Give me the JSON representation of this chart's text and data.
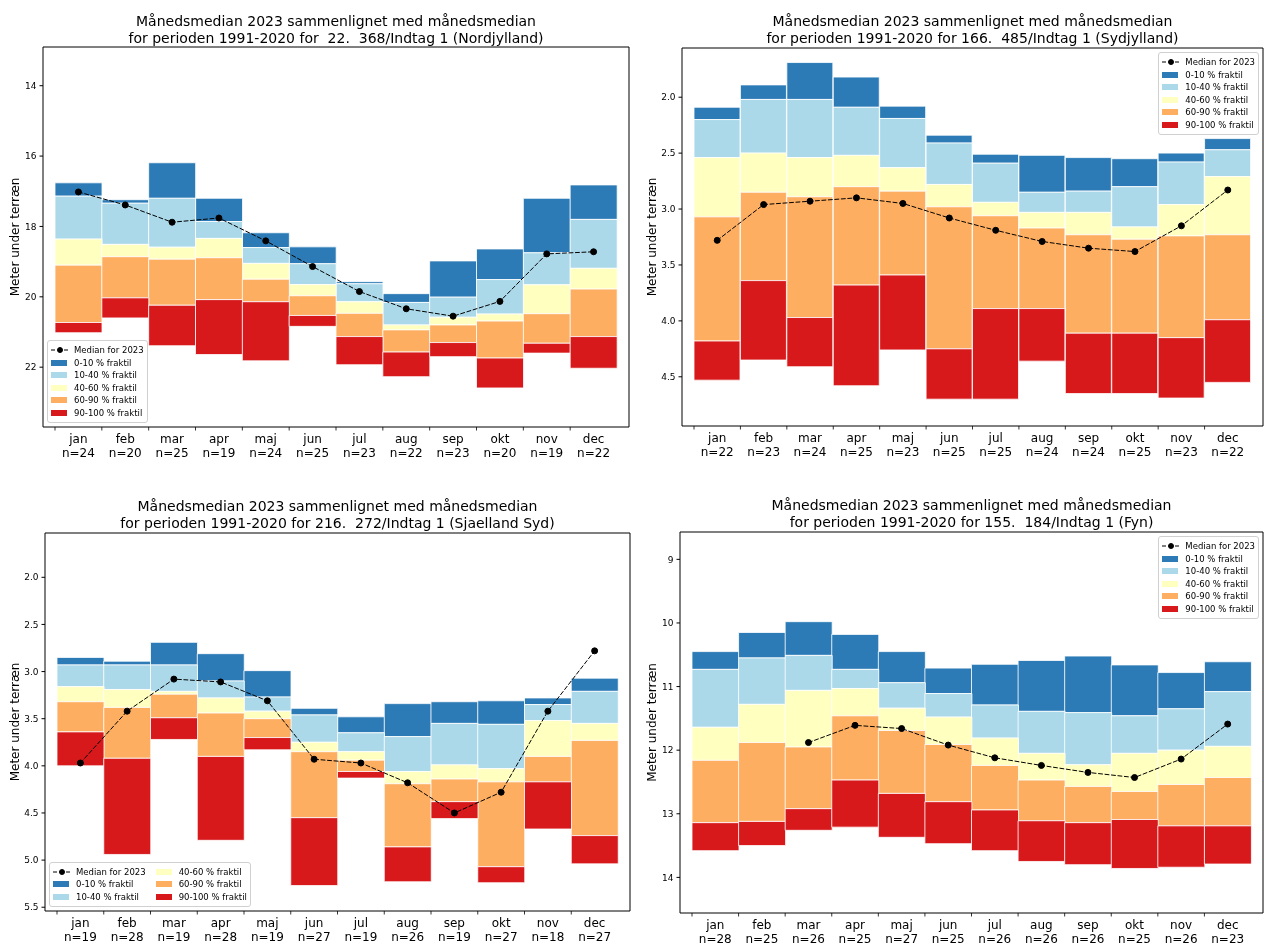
{
  "chart_data": [
    {
      "type": "bar",
      "title": "Månedsmedian 2023 sammenlignet med månedsmedian\nfor perioden 1991-2020 for  22.  368/Indtag 1 (Nordjylland)",
      "ylabel": "Meter under terræn",
      "categories": [
        "jan\nn=24",
        "feb\nn=20",
        "mar\nn=25",
        "apr\nn=19",
        "maj\nn=24",
        "jun\nn=25",
        "jul\nn=23",
        "aug\nn=22",
        "sep\nn=23",
        "okt\nn=20",
        "nov\nn=19",
        "dec\nn=22"
      ],
      "series": [
        {
          "name": "0-10 % fraktil",
          "color": "#2c7bb6",
          "base": [
            16.76,
            17.24,
            16.19,
            17.2,
            18.18,
            18.58,
            19.57,
            19.91,
            18.98,
            18.64,
            17.2,
            16.82
          ],
          "values": [
            0.38,
            0.1,
            1.01,
            0.66,
            0.42,
            0.48,
            0.06,
            0.25,
            1.03,
            0.87,
            1.55,
            0.98
          ]
        },
        {
          "name": "10-40 % fraktil",
          "color": "#abd9e9",
          "base": [
            17.14,
            17.34,
            17.2,
            17.86,
            18.6,
            19.06,
            19.63,
            20.16,
            20.01,
            19.51,
            18.75,
            17.8
          ],
          "values": [
            1.22,
            1.17,
            1.39,
            0.48,
            0.45,
            0.59,
            0.51,
            0.64,
            0.57,
            0.98,
            0.91,
            1.39
          ]
        },
        {
          "name": "40-60 % fraktil",
          "color": "#ffffbf",
          "base": [
            18.36,
            18.51,
            18.59,
            18.34,
            19.05,
            19.65,
            20.14,
            20.8,
            20.58,
            20.49,
            19.66,
            19.19
          ],
          "values": [
            0.74,
            0.35,
            0.34,
            0.55,
            0.45,
            0.32,
            0.33,
            0.14,
            0.22,
            0.2,
            0.82,
            0.59
          ]
        },
        {
          "name": "60-90 % fraktil",
          "color": "#fdae61",
          "base": [
            19.1,
            18.86,
            18.93,
            18.89,
            19.5,
            19.97,
            20.47,
            20.94,
            20.8,
            20.69,
            20.48,
            19.78
          ],
          "values": [
            1.63,
            1.17,
            1.31,
            1.19,
            0.64,
            0.56,
            0.66,
            0.63,
            0.5,
            1.05,
            0.84,
            1.35
          ]
        },
        {
          "name": "90-100 % fraktil",
          "color": "#d7191c",
          "base": [
            20.73,
            20.03,
            20.24,
            20.08,
            20.14,
            20.53,
            21.13,
            21.57,
            21.3,
            21.74,
            21.32,
            21.13
          ],
          "values": [
            0.29,
            0.57,
            1.15,
            1.56,
            1.68,
            0.31,
            0.8,
            0.7,
            0.4,
            0.85,
            0.28,
            0.9
          ]
        },
        {
          "name": "Median for 2023",
          "type": "line",
          "color": "#000000",
          "marker": "circle",
          "line_style": "dashed",
          "values": [
            17.02,
            17.39,
            17.88,
            17.76,
            18.41,
            19.14,
            19.85,
            20.34,
            20.55,
            20.13,
            18.78,
            18.72
          ]
        }
      ],
      "ylim": [
        23.7,
        12.9
      ],
      "yticks": [
        14,
        16,
        18,
        20,
        22
      ],
      "legend": "bottom left"
    },
    {
      "type": "bar",
      "title": "Månedsmedian 2023 sammenlignet med månedsmedian\nfor perioden 1991-2020 for 166.  485/Indtag 1 (Sydjylland)",
      "ylabel": "Meter under terræn",
      "categories": [
        "jan\nn=22",
        "feb\nn=23",
        "mar\nn=24",
        "apr\nn=25",
        "maj\nn=23",
        "jun\nn=25",
        "jul\nn=25",
        "aug\nn=24",
        "sep\nn=24",
        "okt\nn=25",
        "nov\nn=23",
        "dec\nn=22"
      ],
      "series": [
        {
          "name": "0-10 % fraktil",
          "color": "#2c7bb6",
          "base": [
            2.09,
            1.89,
            1.69,
            1.82,
            2.08,
            2.34,
            2.51,
            2.52,
            2.54,
            2.55,
            2.5,
            2.37
          ],
          "values": [
            0.11,
            0.13,
            0.33,
            0.27,
            0.11,
            0.07,
            0.08,
            0.33,
            0.3,
            0.25,
            0.08,
            0.1
          ]
        },
        {
          "name": "10-40 % fraktil",
          "color": "#abd9e9",
          "base": [
            2.2,
            2.02,
            2.02,
            2.09,
            2.19,
            2.41,
            2.59,
            2.85,
            2.84,
            2.8,
            2.58,
            2.47
          ],
          "values": [
            0.34,
            0.48,
            0.52,
            0.43,
            0.44,
            0.37,
            0.35,
            0.18,
            0.19,
            0.36,
            0.38,
            0.24
          ]
        },
        {
          "name": "40-60 % fraktil",
          "color": "#ffffbf",
          "base": [
            2.54,
            2.5,
            2.54,
            2.52,
            2.63,
            2.78,
            2.94,
            3.03,
            3.03,
            3.16,
            2.96,
            2.71
          ],
          "values": [
            0.53,
            0.35,
            0.35,
            0.28,
            0.21,
            0.2,
            0.12,
            0.14,
            0.2,
            0.11,
            0.28,
            0.52
          ]
        },
        {
          "name": "60-90 % fraktil",
          "color": "#fdae61",
          "base": [
            3.07,
            2.85,
            2.89,
            2.8,
            2.84,
            2.98,
            3.06,
            3.17,
            3.23,
            3.27,
            3.24,
            3.23
          ],
          "values": [
            1.11,
            0.79,
            1.08,
            0.88,
            0.75,
            1.27,
            0.83,
            0.72,
            0.88,
            0.84,
            0.91,
            0.76
          ]
        },
        {
          "name": "90-100 % fraktil",
          "color": "#d7191c",
          "base": [
            4.18,
            3.64,
            3.97,
            3.68,
            3.59,
            4.25,
            3.89,
            3.89,
            4.11,
            4.11,
            4.15,
            3.99
          ],
          "values": [
            0.35,
            0.71,
            0.44,
            0.9,
            0.67,
            0.45,
            0.81,
            0.47,
            0.54,
            0.54,
            0.54,
            0.56
          ]
        },
        {
          "name": "Median for 2023",
          "type": "line",
          "color": "#000000",
          "marker": "circle",
          "line_style": "dashed",
          "values": [
            3.28,
            2.96,
            2.93,
            2.9,
            2.95,
            3.08,
            3.19,
            3.29,
            3.35,
            3.38,
            3.15,
            2.83
          ]
        }
      ],
      "ylim": [
        4.94,
        1.56
      ],
      "yticks": [
        {
          "value": 2,
          "label": "2.0"
        },
        2.5,
        {
          "value": 3,
          "label": "3.0"
        },
        3.5,
        {
          "value": 4,
          "label": "4.0"
        },
        4.5
      ],
      "legend": "top right"
    },
    {
      "type": "bar",
      "title": "Månedsmedian 2023 sammenlignet med månedsmedian\nfor perioden 1991-2020 for 216.  272/Indtag 1 (Sjaelland Syd)",
      "ylabel": "Meter under terræn",
      "categories": [
        "jan\nn=19",
        "feb\nn=28",
        "mar\nn=19",
        "apr\nn=28",
        "maj\nn=19",
        "jun\nn=27",
        "jul\nn=19",
        "aug\nn=26",
        "sep\nn=19",
        "okt\nn=27",
        "nov\nn=18",
        "dec\nn=27"
      ],
      "series": [
        {
          "name": "0-10 % fraktil",
          "color": "#2c7bb6",
          "base": [
            2.85,
            2.89,
            2.69,
            2.81,
            2.99,
            3.39,
            3.48,
            3.34,
            3.32,
            3.31,
            3.28,
            3.07
          ],
          "values": [
            0.08,
            0.04,
            0.24,
            0.29,
            0.28,
            0.07,
            0.17,
            0.35,
            0.23,
            0.25,
            0.07,
            0.14
          ]
        },
        {
          "name": "10-40 % fraktil",
          "color": "#abd9e9",
          "base": [
            2.93,
            2.93,
            2.93,
            3.1,
            3.27,
            3.46,
            3.65,
            3.69,
            3.55,
            3.56,
            3.35,
            3.21
          ],
          "values": [
            0.23,
            0.26,
            0.28,
            0.18,
            0.15,
            0.29,
            0.2,
            0.37,
            0.44,
            0.47,
            0.17,
            0.34
          ]
        },
        {
          "name": "40-60 % fraktil",
          "color": "#ffffbf",
          "base": [
            3.16,
            3.19,
            3.21,
            3.28,
            3.42,
            3.75,
            3.85,
            4.06,
            3.99,
            4.03,
            3.52,
            3.55
          ],
          "values": [
            0.16,
            0.19,
            0.03,
            0.16,
            0.08,
            0.1,
            0.09,
            0.13,
            0.15,
            0.14,
            0.38,
            0.18
          ]
        },
        {
          "name": "60-90 % fraktil",
          "color": "#fdae61",
          "base": [
            3.32,
            3.38,
            3.24,
            3.44,
            3.5,
            3.85,
            3.94,
            4.19,
            4.14,
            4.17,
            3.9,
            3.73
          ],
          "values": [
            0.32,
            0.54,
            0.25,
            0.46,
            0.2,
            0.7,
            0.12,
            0.67,
            0.24,
            0.9,
            0.27,
            1.01
          ]
        },
        {
          "name": "90-100 % fraktil",
          "color": "#d7191c",
          "base": [
            3.64,
            3.92,
            3.49,
            3.9,
            3.7,
            4.55,
            4.06,
            4.86,
            4.38,
            5.07,
            4.17,
            4.74
          ],
          "values": [
            0.36,
            1.02,
            0.23,
            0.89,
            0.13,
            0.72,
            0.07,
            0.37,
            0.18,
            0.17,
            0.5,
            0.3
          ]
        },
        {
          "name": "Median for 2023",
          "type": "line",
          "color": "#000000",
          "marker": "circle",
          "line_style": "dashed",
          "values": [
            3.97,
            3.42,
            3.08,
            3.11,
            3.31,
            3.93,
            3.97,
            4.18,
            4.5,
            4.28,
            3.42,
            2.78
          ]
        }
      ],
      "ylim": [
        5.54,
        1.53
      ],
      "yticks": [
        {
          "value": 2,
          "label": "2.0"
        },
        2.5,
        {
          "value": 3,
          "label": "3.0"
        },
        3.5,
        {
          "value": 4,
          "label": "4.0"
        },
        4.5,
        {
          "value": 5,
          "label": "5.0"
        },
        5.5
      ],
      "legend": "bottom left"
    },
    {
      "type": "bar",
      "title": "Månedsmedian 2023 sammenlignet med månedsmedian\nfor perioden 1991-2020 for 155.  184/Indtag 1 (Fyn)",
      "ylabel": "Meter under terræn",
      "categories": [
        "jan\nn=28",
        "feb\nn=25",
        "mar\nn=26",
        "apr\nn=25",
        "maj\nn=27",
        "jun\nn=25",
        "jul\nn=26",
        "aug\nn=26",
        "sep\nn=26",
        "okt\nn=25",
        "nov\nn=26",
        "dec\nn=23"
      ],
      "series": [
        {
          "name": "0-10 % fraktil",
          "color": "#2c7bb6",
          "base": [
            10.45,
            10.15,
            9.98,
            10.18,
            10.45,
            10.71,
            10.65,
            10.59,
            10.52,
            10.66,
            10.78,
            10.61
          ],
          "values": [
            0.28,
            0.4,
            0.53,
            0.55,
            0.49,
            0.4,
            0.64,
            0.8,
            0.89,
            0.8,
            0.57,
            0.47
          ]
        },
        {
          "name": "10-40 % fraktil",
          "color": "#abd9e9",
          "base": [
            10.73,
            10.55,
            10.51,
            10.73,
            10.94,
            11.11,
            11.29,
            11.39,
            11.41,
            11.46,
            11.35,
            11.08
          ],
          "values": [
            0.91,
            0.73,
            0.55,
            0.3,
            0.4,
            0.37,
            0.52,
            0.66,
            0.82,
            0.59,
            0.65,
            0.86
          ]
        },
        {
          "name": "40-60 % fraktil",
          "color": "#ffffbf",
          "base": [
            11.64,
            11.28,
            11.06,
            11.03,
            11.34,
            11.48,
            11.81,
            12.05,
            12.23,
            12.05,
            12.0,
            11.94
          ],
          "values": [
            0.52,
            0.6,
            0.89,
            0.43,
            0.35,
            0.43,
            0.43,
            0.42,
            0.34,
            0.6,
            0.54,
            0.49
          ]
        },
        {
          "name": "60-90 % fraktil",
          "color": "#fdae61",
          "base": [
            12.16,
            11.88,
            11.95,
            11.46,
            11.69,
            11.91,
            12.24,
            12.47,
            12.57,
            12.65,
            12.54,
            12.43
          ],
          "values": [
            0.98,
            1.24,
            0.97,
            1.01,
            0.99,
            0.9,
            0.7,
            0.64,
            0.57,
            0.44,
            0.65,
            0.76
          ]
        },
        {
          "name": "90-100 % fraktil",
          "color": "#d7191c",
          "base": [
            13.14,
            13.12,
            12.92,
            12.47,
            12.68,
            12.81,
            12.94,
            13.11,
            13.14,
            13.09,
            13.19,
            13.19
          ],
          "values": [
            0.44,
            0.38,
            0.34,
            0.74,
            0.69,
            0.66,
            0.64,
            0.64,
            0.66,
            0.77,
            0.65,
            0.6
          ]
        },
        {
          "name": "Median for 2023",
          "type": "line",
          "color": "#000000",
          "marker": "circle",
          "line_style": "dashed",
          "values": [
            null,
            null,
            11.88,
            11.61,
            11.66,
            11.92,
            12.12,
            12.24,
            12.35,
            12.43,
            12.14,
            11.59
          ]
        }
      ],
      "ylim": [
        14.56,
        8.57
      ],
      "yticks": [
        9,
        10,
        11,
        12,
        13,
        14
      ],
      "legend": "top right"
    }
  ]
}
